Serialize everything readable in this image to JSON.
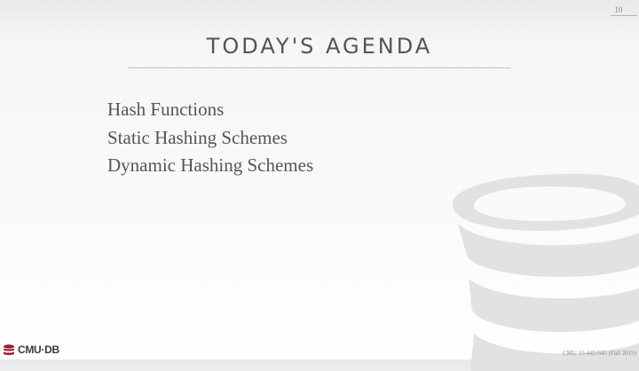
{
  "slide": {
    "page_number": "10",
    "title": "TODAY'S AGENDA",
    "agenda_items": [
      "Hash Functions",
      "Static Hashing Schemes",
      "Dynamic Hashing Schemes"
    ]
  },
  "footer": {
    "logo_text": "CMU·DB",
    "course": "CMU 15-445/645 (Fall 2019)"
  },
  "icons": {
    "watermark": "database-cylinder-icon",
    "logo": "database-icon"
  },
  "colors": {
    "logo_accent": "#a6192e",
    "watermark": "#e2e2e2"
  }
}
